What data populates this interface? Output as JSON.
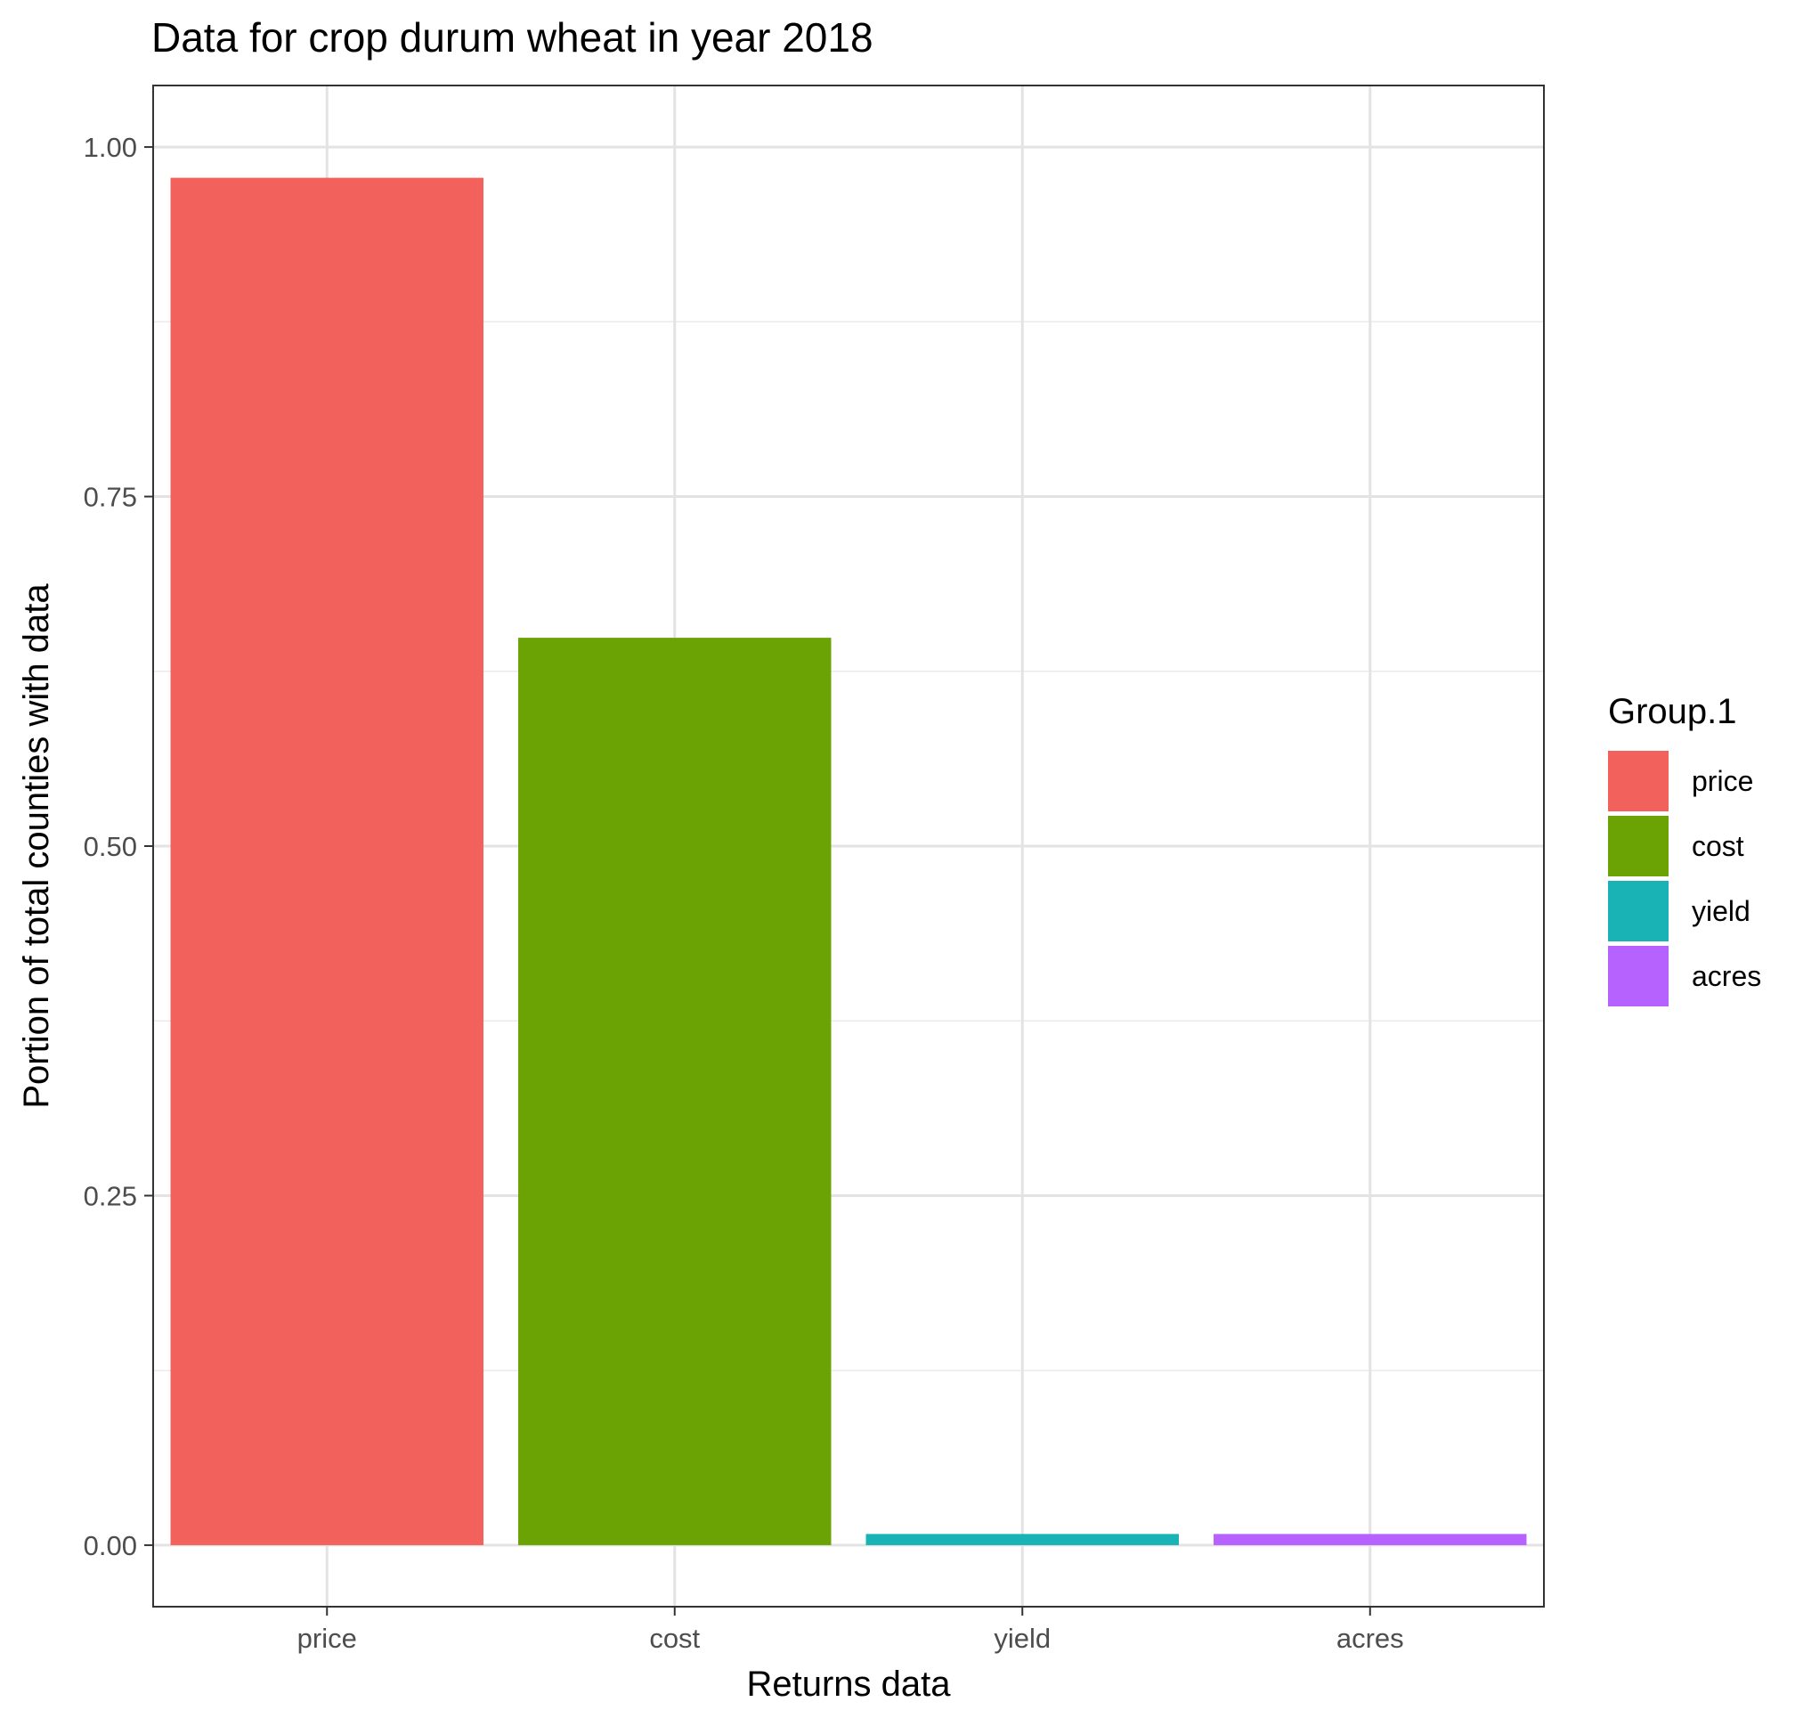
{
  "chart_data": {
    "type": "bar",
    "title": "Data for crop durum wheat in year 2018",
    "xlabel": "Returns data",
    "ylabel": "Portion of total counties with data",
    "categories": [
      "price",
      "cost",
      "yield",
      "acres"
    ],
    "values": [
      0.978,
      0.649,
      0.008,
      0.008
    ],
    "colors": [
      "#F2615B",
      "#6BA304",
      "#19B3B5",
      "#B562FE"
    ],
    "ylim": [
      -0.044,
      1.044
    ],
    "yticks": [
      0.0,
      0.25,
      0.5,
      0.75,
      1.0
    ],
    "ytick_labels": [
      "0.00",
      "0.25",
      "0.50",
      "0.75",
      "1.00"
    ],
    "grid": true,
    "legend": {
      "title": "Group.1",
      "position": "right",
      "entries": [
        "price",
        "cost",
        "yield",
        "acres"
      ]
    }
  }
}
